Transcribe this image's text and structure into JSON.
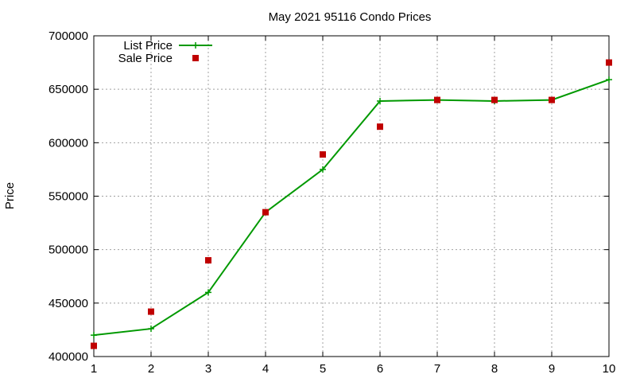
{
  "chart_data": {
    "type": "line",
    "title": "May 2021 95116 Condo Prices",
    "xlabel": "",
    "ylabel": "Price",
    "x": [
      1,
      2,
      3,
      4,
      5,
      6,
      7,
      8,
      9,
      10
    ],
    "xlim": [
      1,
      10
    ],
    "ylim": [
      400000,
      700000
    ],
    "xticks": [
      "1",
      "2",
      "3",
      "4",
      "5",
      "6",
      "7",
      "8",
      "9",
      "10"
    ],
    "yticks": [
      "400000",
      "450000",
      "500000",
      "550000",
      "600000",
      "650000",
      "700000"
    ],
    "grid": true,
    "legend_position": "top-left",
    "series": [
      {
        "name": "List Price",
        "kind": "linespoints",
        "marker": "plus",
        "color": "#009900",
        "values": [
          420000,
          426000,
          460000,
          535000,
          575000,
          639000,
          640000,
          639000,
          640000,
          659000
        ]
      },
      {
        "name": "Sale Price",
        "kind": "points",
        "marker": "square",
        "color": "#c00000",
        "values": [
          410000,
          442000,
          490000,
          535000,
          589000,
          615000,
          640000,
          640000,
          640000,
          675000
        ]
      }
    ]
  }
}
